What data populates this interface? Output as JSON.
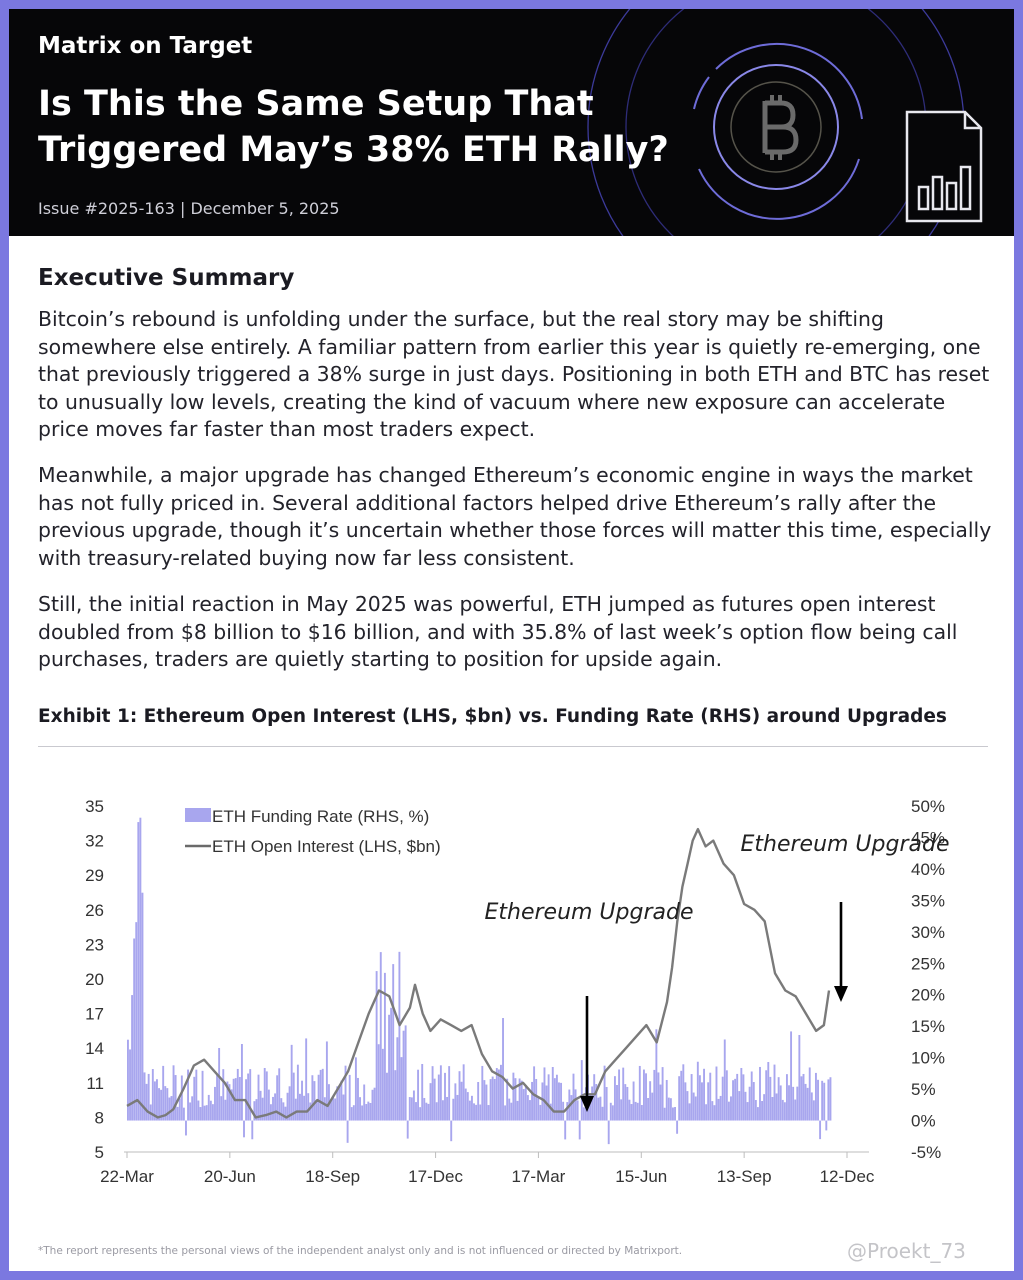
{
  "header": {
    "brand": "Matrix on Target",
    "headline": "Is This the Same Setup That Triggered May’s 38% ETH Rally?",
    "issue": "Issue #2025-163 | December 5, 2025"
  },
  "summary": {
    "title": "Executive Summary",
    "paragraphs": [
      "Bitcoin’s rebound is unfolding under the surface, but the real story may be shifting somewhere else entirely. A familiar pattern from earlier this year is quietly re-emerging, one that previously triggered a 38% surge in just days. Positioning in both ETH and BTC has reset to unusually low levels, creating the kind of vacuum where new exposure can accelerate price moves far faster than most traders expect.",
      "Meanwhile, a major upgrade has changed Ethereum’s economic engine in ways the market has not fully priced in. Several additional factors helped drive Ethereum’s rally after the previous upgrade, though it’s uncertain whether those forces will matter this time, especially with treasury-related buying now far less consistent.",
      "Still, the initial reaction in May 2025 was powerful, ETH jumped as futures open interest doubled from $8 billion to $16 billion, and with 35.8% of last week’s option flow being call purchases, traders are quietly starting to position for upside again."
    ]
  },
  "exhibit": {
    "title": "Exhibit 1: Ethereum Open Interest (LHS, $bn) vs. Funding Rate (RHS) around Upgrades"
  },
  "chart_data": {
    "type": "line",
    "title": "Ethereum Open Interest (LHS, $bn) vs. Funding Rate (RHS) around Upgrades",
    "x_ticks": [
      "22-Mar",
      "20-Jun",
      "18-Sep",
      "17-Dec",
      "17-Mar",
      "15-Jun",
      "13-Sep",
      "12-Dec"
    ],
    "y_left_ticks": [
      "35",
      "32",
      "29",
      "26",
      "23",
      "20",
      "17",
      "14",
      "11",
      "8",
      "5"
    ],
    "y_right_ticks": [
      "50%",
      "45%",
      "40%",
      "35%",
      "30%",
      "25%",
      "20%",
      "15%",
      "10%",
      "5%",
      "0%",
      "-5%"
    ],
    "ylim_left": [
      5,
      35
    ],
    "ylim_right": [
      -5,
      50
    ],
    "legend": [
      "ETH Funding Rate (RHS, %)",
      "ETH Open Interest (LHS, $bn)"
    ],
    "annotations": [
      {
        "text": "Ethereum Upgrade",
        "x": 17.5
      },
      {
        "text": "Ethereum Upgrade",
        "x": 27.2
      }
    ],
    "series": [
      {
        "name": "ETH Open Interest (LHS, $bn)",
        "x": [
          0,
          0.4,
          0.8,
          1.2,
          1.5,
          1.8,
          2.2,
          2.6,
          3,
          3.4,
          3.8,
          4.2,
          4.6,
          5,
          5.4,
          5.8,
          6.2,
          6.6,
          7,
          7.4,
          7.8,
          8.2,
          8.6,
          9,
          9.4,
          9.8,
          10.2,
          10.6,
          11,
          11.2,
          11.5,
          11.8,
          12.2,
          12.6,
          13,
          13.4,
          13.8,
          14.2,
          14.6,
          15,
          15.4,
          15.8,
          16.2,
          16.6,
          17,
          17.4,
          17.8,
          18.2,
          18.6,
          19,
          19.4,
          19.8,
          20.2,
          20.6,
          21,
          21.2,
          21.4,
          21.6,
          21.8,
          22,
          22.2,
          22.5,
          22.8,
          23.2,
          23.6,
          24,
          24.4,
          24.8,
          25.2,
          25.6,
          26,
          26.4,
          26.8,
          27.1,
          27.3
        ],
        "values": [
          9,
          9.5,
          8.5,
          8,
          8.2,
          8.7,
          10.5,
          12.5,
          13,
          12,
          11,
          9.5,
          9.5,
          8,
          8.2,
          8.5,
          8,
          8.5,
          8.5,
          9.5,
          9,
          10.5,
          12,
          14.5,
          17,
          19,
          18.5,
          16,
          17.5,
          19.5,
          17,
          15.5,
          16.5,
          16,
          15.5,
          16,
          13.5,
          12,
          11.5,
          10.5,
          11,
          10,
          9.5,
          8.5,
          8.5,
          9.5,
          10,
          10,
          12,
          13,
          14,
          15,
          16,
          14.5,
          18,
          21,
          25,
          28,
          30,
          32,
          33,
          31.5,
          32,
          30,
          29,
          26.5,
          26,
          25,
          20.5,
          19,
          18.5,
          17,
          15.5,
          16,
          19
        ]
      },
      {
        "name": "ETH Funding Rate (RHS, %)",
        "note": "daily bars fluctuating mostly between 0% and 10%, with spikes toward 50% near 22-Mar and ~30% near 17-Dec"
      }
    ]
  },
  "footer": {
    "footnote": "*The report represents the personal views of the independent analyst only and is not influenced or directed by Matrixport.",
    "watermark": "@Proekt_73"
  }
}
